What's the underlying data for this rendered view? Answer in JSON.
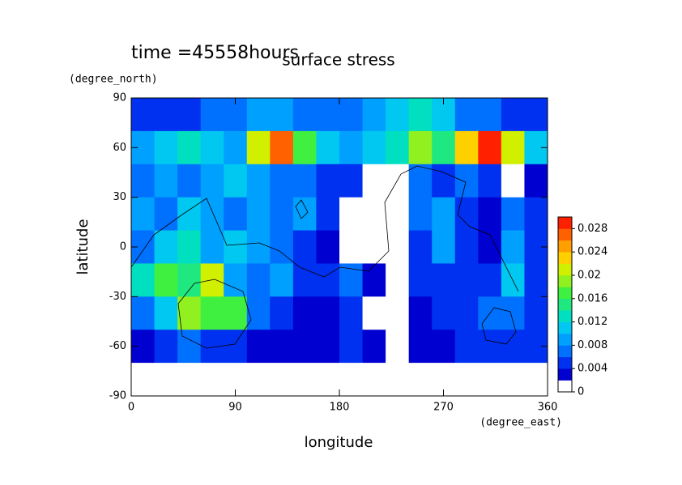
{
  "chart_data": {
    "type": "heatmap",
    "title": "surface stress",
    "subtitle": "time =45558hours",
    "x_label": "longitude",
    "x_unit": "(degree_east)",
    "y_label": "latitude",
    "y_unit": "(degree_north)",
    "x": [
      10,
      30,
      50,
      70,
      90,
      110,
      130,
      150,
      170,
      190,
      210,
      230,
      250,
      270,
      290,
      310,
      330,
      350
    ],
    "y": [
      80,
      60,
      40,
      20,
      0,
      -20,
      -40,
      -60,
      -80
    ],
    "z": [
      [
        0.004,
        0.005,
        0.005,
        0.006,
        0.006,
        0.008,
        0.008,
        0.006,
        0.006,
        0.006,
        0.008,
        0.01,
        0.012,
        0.01,
        0.006,
        0.006,
        0.004,
        0.004
      ],
      [
        0.008,
        0.01,
        0.012,
        0.01,
        0.008,
        0.02,
        0.026,
        0.016,
        0.01,
        0.008,
        0.01,
        0.012,
        0.018,
        0.014,
        0.022,
        0.028,
        0.02,
        0.01
      ],
      [
        0.006,
        0.008,
        0.006,
        0.008,
        0.01,
        0.008,
        0.006,
        0.006,
        0.004,
        0.004,
        0,
        0,
        0.006,
        0.004,
        0.006,
        0.004,
        0,
        0.002
      ],
      [
        0.008,
        0.006,
        0.01,
        0.008,
        0.006,
        0.008,
        0.006,
        0.008,
        0.004,
        0,
        0,
        0,
        0.006,
        0.008,
        0.004,
        0.002,
        0.006,
        0.004
      ],
      [
        0.006,
        0.01,
        0.012,
        0.008,
        0.01,
        0.008,
        0.006,
        0.004,
        0.002,
        0,
        0,
        0,
        0.004,
        0.008,
        0.004,
        0.002,
        0.008,
        0.004
      ],
      [
        0.012,
        0.016,
        0.014,
        0.02,
        0.008,
        0.006,
        0.008,
        0.004,
        0.004,
        0.006,
        0.002,
        0,
        0.004,
        0.004,
        0.004,
        0.004,
        0.01,
        0.004
      ],
      [
        0.006,
        0.01,
        0.018,
        0.016,
        0.016,
        0.006,
        0.004,
        0.002,
        0.002,
        0.004,
        0,
        0,
        0.002,
        0.004,
        0.004,
        0.006,
        0.006,
        0.004
      ],
      [
        0.002,
        0.004,
        0.006,
        0.004,
        0.004,
        0.002,
        0.002,
        0.002,
        0.002,
        0.004,
        0.002,
        0,
        0.002,
        0.002,
        0.004,
        0.004,
        0.004,
        0.004
      ],
      [
        0,
        0,
        0,
        0,
        0,
        0,
        0,
        0,
        0,
        0,
        0,
        0,
        0,
        0,
        0,
        0,
        0,
        0
      ]
    ],
    "xlim": [
      0,
      360
    ],
    "xticks": [
      0,
      90,
      180,
      270,
      360
    ],
    "ylim": [
      -90,
      90
    ],
    "yticks": [
      -90,
      -60,
      -30,
      0,
      30,
      60,
      90
    ],
    "colorbar": {
      "clim": [
        0,
        0.03
      ],
      "ticks": [
        0,
        0.004,
        0.008,
        0.012,
        0.016,
        0.02,
        0.024,
        0.028
      ],
      "colors": [
        "#ffffff",
        "#0000d0",
        "#0030f0",
        "#0070ff",
        "#00a0ff",
        "#00c8f0",
        "#00e0c0",
        "#20e880",
        "#40f040",
        "#90f020",
        "#d0f000",
        "#ffd000",
        "#ffa000",
        "#ff6000",
        "#ff2000"
      ]
    }
  }
}
